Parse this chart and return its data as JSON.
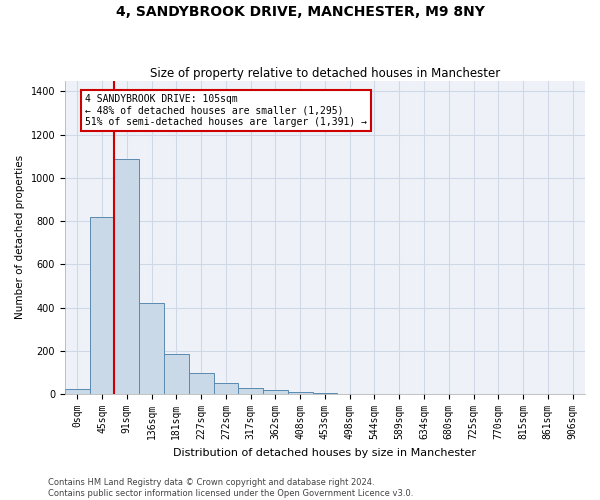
{
  "title": "4, SANDYBROOK DRIVE, MANCHESTER, M9 8NY",
  "subtitle": "Size of property relative to detached houses in Manchester",
  "xlabel": "Distribution of detached houses by size in Manchester",
  "ylabel": "Number of detached properties",
  "bin_labels": [
    "0sqm",
    "45sqm",
    "91sqm",
    "136sqm",
    "181sqm",
    "227sqm",
    "272sqm",
    "317sqm",
    "362sqm",
    "408sqm",
    "453sqm",
    "498sqm",
    "544sqm",
    "589sqm",
    "634sqm",
    "680sqm",
    "725sqm",
    "770sqm",
    "815sqm",
    "861sqm",
    "906sqm"
  ],
  "bar_heights": [
    25,
    820,
    1090,
    420,
    185,
    100,
    50,
    30,
    20,
    10,
    5,
    0,
    0,
    0,
    0,
    0,
    0,
    0,
    0,
    0,
    0
  ],
  "bar_color": "#c9d9e8",
  "bar_edge_color": "#5a8ab0",
  "red_line_bin_index": 2,
  "annotation_text": "4 SANDYBROOK DRIVE: 105sqm\n← 48% of detached houses are smaller (1,295)\n51% of semi-detached houses are larger (1,391) →",
  "annotation_box_color": "#ffffff",
  "annotation_box_edge": "#cc0000",
  "red_line_color": "#cc0000",
  "grid_color": "#d0d8e8",
  "background_color": "#eef2f8",
  "ylim": [
    0,
    1450
  ],
  "yticks": [
    0,
    200,
    400,
    600,
    800,
    1000,
    1200,
    1400
  ],
  "footer_line1": "Contains HM Land Registry data © Crown copyright and database right 2024.",
  "footer_line2": "Contains public sector information licensed under the Open Government Licence v3.0.",
  "title_fontsize": 10,
  "subtitle_fontsize": 8.5,
  "xlabel_fontsize": 8,
  "ylabel_fontsize": 7.5,
  "tick_fontsize": 7,
  "annotation_fontsize": 7,
  "footer_fontsize": 6,
  "bar_width": 1.0
}
